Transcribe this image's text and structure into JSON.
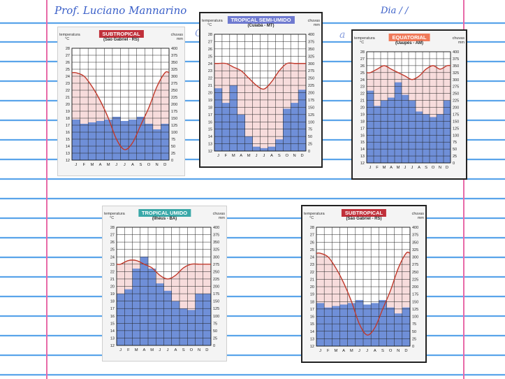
{
  "header": {
    "teacher": "Prof. Luciano Mannarino",
    "date_label": "Dia   /   /",
    "faint_text_left": "C",
    "faint_text_right": "a"
  },
  "colors": {
    "paper_line": "#5aa4ea",
    "margin_line": "#e86aa8",
    "bar_fill": "#6f8fd8",
    "temperature_line": "#c0392b",
    "hot_zone": "#f7dcdc",
    "subtropical_badge": "#c0303a",
    "semi_umido_badge": "#6f7ad0",
    "equatorial_badge": "#f07a5a",
    "umido_badge": "#3aa8a8"
  },
  "charts_common": {
    "temp_axis_label": "temperatura",
    "temp_unit": "°C",
    "rain_axis_label": "chuvas",
    "rain_unit": "mm",
    "months": [
      "J",
      "F",
      "M",
      "A",
      "M",
      "J",
      "J",
      "A",
      "S",
      "O",
      "N",
      "D"
    ],
    "temp_ticks": [
      "12",
      "13",
      "14",
      "15",
      "16",
      "17",
      "18",
      "19",
      "20",
      "21",
      "22",
      "23",
      "24",
      "25",
      "26",
      "27",
      "28"
    ],
    "rain_ticks": [
      "0",
      "25",
      "50",
      "75",
      "100",
      "125",
      "150",
      "175",
      "200",
      "225",
      "250",
      "275",
      "300",
      "325",
      "350",
      "375",
      "400"
    ]
  },
  "chart_data": [
    {
      "type": "bar",
      "title": "SUBTROPICAL",
      "subtitle": "(São Gabriel - RS)",
      "badge_color": "#c0303a",
      "categories": [
        "J",
        "F",
        "M",
        "A",
        "M",
        "J",
        "J",
        "A",
        "S",
        "O",
        "N",
        "D"
      ],
      "rain_mm": [
        145,
        130,
        135,
        140,
        145,
        155,
        140,
        145,
        155,
        130,
        110,
        130
      ],
      "temp_c": [
        24.5,
        24.0,
        22.5,
        20.5,
        18.0,
        15.0,
        13.5,
        14.5,
        17.0,
        19.5,
        22.5,
        24.5
      ],
      "temp_ylim": [
        12,
        28
      ],
      "rain_ylim": [
        0,
        400
      ]
    },
    {
      "type": "bar",
      "title": "TROPICAL SEMI-UMIDO",
      "subtitle": "(Cuiabá - MT)",
      "badge_color": "#6f7ad0",
      "categories": [
        "J",
        "F",
        "M",
        "A",
        "M",
        "J",
        "J",
        "A",
        "S",
        "O",
        "N",
        "D"
      ],
      "rain_mm": [
        215,
        165,
        225,
        125,
        50,
        15,
        10,
        15,
        40,
        145,
        165,
        210
      ],
      "temp_c": [
        24.0,
        24.0,
        23.5,
        23.0,
        22.0,
        21.0,
        20.5,
        21.5,
        23.0,
        24.0,
        24.0,
        24.0
      ],
      "temp_ylim": [
        12,
        28
      ],
      "rain_ylim": [
        0,
        400
      ]
    },
    {
      "type": "bar",
      "title": "EQUATORIAL",
      "subtitle": "(Uaupés - AM)",
      "badge_color": "#f07a5a",
      "categories": [
        "J",
        "F",
        "M",
        "A",
        "M",
        "J",
        "J",
        "A",
        "S",
        "O",
        "N",
        "D"
      ],
      "rain_mm": [
        260,
        205,
        225,
        235,
        290,
        245,
        225,
        185,
        175,
        165,
        175,
        225
      ],
      "temp_c": [
        25.0,
        25.5,
        26.0,
        25.5,
        25.0,
        24.5,
        24.0,
        24.5,
        25.5,
        26.0,
        25.5,
        26.0
      ],
      "temp_ylim": [
        12,
        28
      ],
      "rain_ylim": [
        0,
        400
      ]
    },
    {
      "type": "bar",
      "title": "TROPICAL UMIDO",
      "subtitle": "(Ilhéus - BA)",
      "badge_color": "#3aa8a8",
      "categories": [
        "J",
        "F",
        "M",
        "A",
        "M",
        "J",
        "J",
        "A",
        "S",
        "O",
        "N",
        "D"
      ],
      "rain_mm": [
        175,
        190,
        260,
        300,
        260,
        210,
        185,
        150,
        125,
        120,
        175,
        175
      ],
      "temp_c": [
        23.0,
        23.5,
        23.5,
        23.0,
        22.5,
        21.5,
        21.0,
        21.5,
        22.5,
        23.0,
        23.0,
        23.0
      ],
      "temp_ylim": [
        12,
        28
      ],
      "rain_ylim": [
        0,
        400
      ]
    },
    {
      "type": "bar",
      "title": "SUBTROPICAL",
      "subtitle": "(São Gabriel - RS)",
      "badge_color": "#c0303a",
      "categories": [
        "J",
        "F",
        "M",
        "A",
        "M",
        "J",
        "J",
        "A",
        "S",
        "O",
        "N",
        "D"
      ],
      "rain_mm": [
        145,
        130,
        135,
        140,
        145,
        155,
        140,
        145,
        155,
        130,
        110,
        130
      ],
      "temp_c": [
        24.5,
        24.0,
        22.5,
        20.5,
        18.0,
        15.0,
        13.5,
        14.5,
        17.0,
        19.5,
        22.5,
        24.5
      ],
      "temp_ylim": [
        12,
        28
      ],
      "rain_ylim": [
        0,
        400
      ]
    }
  ]
}
